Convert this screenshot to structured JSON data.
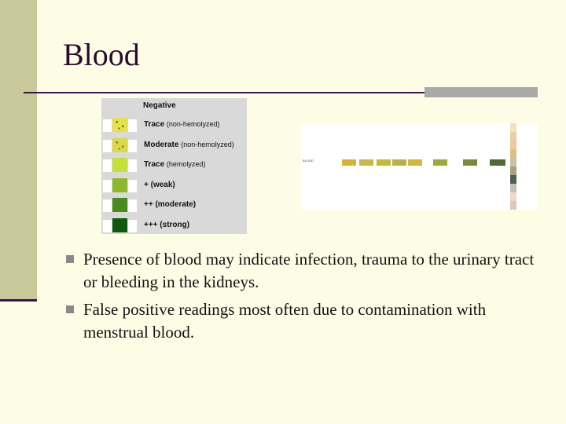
{
  "slide": {
    "title": "Blood",
    "chart": {
      "heading": "Negative",
      "rows": [
        {
          "label": "Trace",
          "sub": "(non-hemolyzed)",
          "color": "#e6e04a",
          "speckle": "#6a7d12"
        },
        {
          "label": "Moderate",
          "sub": "(non-hemolyzed)",
          "color": "#dcd84a",
          "speckle": "#7a8a18"
        },
        {
          "label": "Trace",
          "sub": "(hemolyzed)",
          "color": "#c6e03a"
        },
        {
          "label": "+ (weak)",
          "sub": "",
          "color": "#8db829"
        },
        {
          "label": "++ (moderate)",
          "sub": "",
          "color": "#4a8a1e"
        },
        {
          "label": "+++ (strong)",
          "sub": "",
          "color": "#0f5a0d"
        }
      ]
    },
    "strip": {
      "caption": "BLOOD",
      "pads": [
        "#d8b330",
        "#c8b84a",
        "#c4ba3a",
        "#b6b14a",
        "#d0b838",
        "#a0a83a",
        "#7e8a3a",
        "#4e6a3a"
      ],
      "side_colors": [
        "#f2e0c0",
        "#e8d0a0",
        "#f0c8a0",
        "#e0c080",
        "#c8c0a8",
        "#a8a080",
        "#506050",
        "#c0c0c0",
        "#f0d8c8",
        "#e0c8b8"
      ]
    },
    "bullets": [
      "Presence of blood may indicate infection, trauma to the urinary tract or bleeding in the kidneys.",
      "False positive readings most often due to contamination with menstrual blood."
    ]
  }
}
